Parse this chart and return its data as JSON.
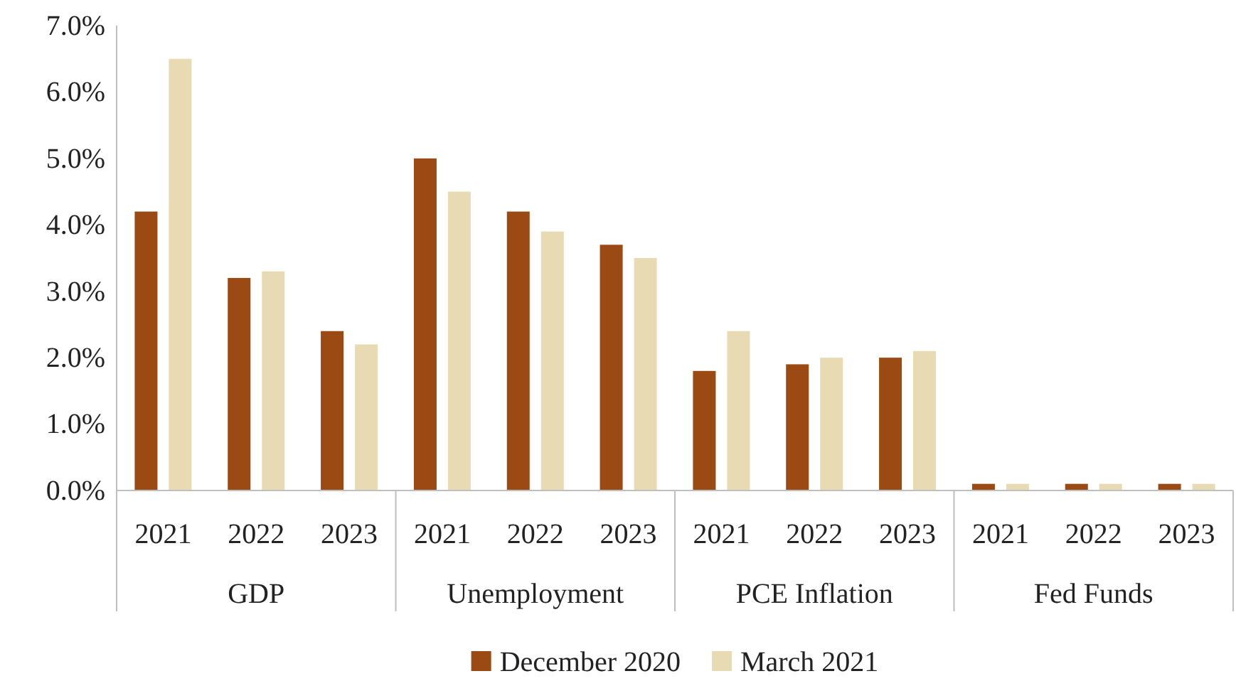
{
  "chart_data": {
    "type": "bar",
    "categories": [
      "2021",
      "2022",
      "2023",
      "2021",
      "2022",
      "2023",
      "2021",
      "2022",
      "2023",
      "2021",
      "2022",
      "2023"
    ],
    "series": [
      {
        "name": "December 2020",
        "color": "#9a4a12",
        "values": [
          4.2,
          3.2,
          2.4,
          5.0,
          4.2,
          3.7,
          1.8,
          1.9,
          2.0,
          0.1,
          0.1,
          0.1
        ]
      },
      {
        "name": "March 2021",
        "color": "#e8dbb4",
        "values": [
          6.5,
          3.3,
          2.2,
          4.5,
          3.9,
          3.5,
          2.4,
          2.0,
          2.1,
          0.1,
          0.1,
          0.1
        ]
      }
    ],
    "annotations": [
      "GDP",
      "Unemployment",
      "PCE Inflation",
      "Fed Funds"
    ],
    "ylim": [
      0,
      7
    ],
    "yticks": [
      {
        "value": 0,
        "label": "0.0%"
      },
      {
        "value": 1,
        "label": "1.0%"
      },
      {
        "value": 2,
        "label": "2.0%"
      },
      {
        "value": 3,
        "label": "3.0%"
      },
      {
        "value": 4,
        "label": "4.0%"
      },
      {
        "value": 5,
        "label": "5.0%"
      },
      {
        "value": 6,
        "label": "6.0%"
      },
      {
        "value": 7,
        "label": "7.0%"
      }
    ],
    "grid": false,
    "legend": "bottom"
  }
}
